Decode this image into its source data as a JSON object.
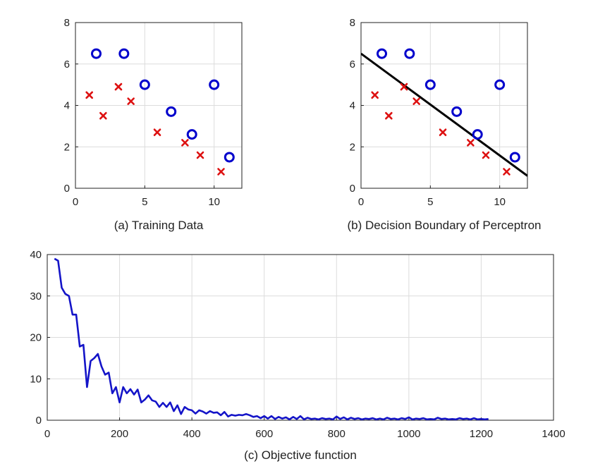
{
  "chart_data": [
    {
      "type": "scatter",
      "caption": "(a) Training Data",
      "xlim": [
        0,
        12
      ],
      "ylim": [
        0,
        8
      ],
      "xticks": [
        0,
        5,
        10
      ],
      "yticks": [
        0,
        2,
        4,
        6,
        8
      ],
      "grid": true,
      "series": [
        {
          "marker": "circle",
          "color": "#0000cc",
          "points": [
            [
              1.5,
              6.5
            ],
            [
              3.5,
              6.5
            ],
            [
              5.0,
              5.0
            ],
            [
              6.9,
              3.7
            ],
            [
              8.4,
              2.6
            ],
            [
              10.0,
              5.0
            ],
            [
              11.1,
              1.5
            ]
          ]
        },
        {
          "marker": "x",
          "color": "#dd1111",
          "points": [
            [
              1.0,
              4.5
            ],
            [
              2.0,
              3.5
            ],
            [
              3.1,
              4.9
            ],
            [
              4.0,
              4.2
            ],
            [
              5.9,
              2.7
            ],
            [
              7.9,
              2.2
            ],
            [
              9.0,
              1.6
            ],
            [
              10.5,
              0.8
            ]
          ]
        }
      ]
    },
    {
      "type": "scatter",
      "caption": "(b) Decision Boundary of Perceptron",
      "xlim": [
        0,
        12
      ],
      "ylim": [
        0,
        8
      ],
      "xticks": [
        0,
        5,
        10
      ],
      "yticks": [
        0,
        2,
        4,
        6,
        8
      ],
      "grid": true,
      "series": [
        {
          "marker": "circle",
          "color": "#0000cc",
          "points": [
            [
              1.5,
              6.5
            ],
            [
              3.5,
              6.5
            ],
            [
              5.0,
              5.0
            ],
            [
              6.9,
              3.7
            ],
            [
              8.4,
              2.6
            ],
            [
              10.0,
              5.0
            ],
            [
              11.1,
              1.5
            ]
          ]
        },
        {
          "marker": "x",
          "color": "#dd1111",
          "points": [
            [
              1.0,
              4.5
            ],
            [
              2.0,
              3.5
            ],
            [
              3.1,
              4.9
            ],
            [
              4.0,
              4.2
            ],
            [
              5.9,
              2.7
            ],
            [
              7.9,
              2.2
            ],
            [
              9.0,
              1.6
            ],
            [
              10.5,
              0.8
            ]
          ]
        }
      ],
      "boundary": {
        "color": "#000000",
        "points": [
          [
            0,
            6.5
          ],
          [
            12,
            0.6
          ]
        ]
      }
    },
    {
      "type": "line",
      "caption": "(c) Objective function",
      "xlim": [
        0,
        1400
      ],
      "ylim": [
        0,
        40
      ],
      "xticks": [
        0,
        200,
        400,
        600,
        800,
        1000,
        1200,
        1400
      ],
      "yticks": [
        0,
        10,
        20,
        30,
        40
      ],
      "grid": true,
      "series": [
        {
          "color": "#1414c8",
          "x": [
            20,
            30,
            40,
            50,
            60,
            70,
            80,
            90,
            100,
            110,
            120,
            130,
            140,
            150,
            160,
            170,
            180,
            190,
            200,
            210,
            220,
            230,
            240,
            250,
            260,
            270,
            280,
            290,
            300,
            310,
            320,
            330,
            340,
            350,
            360,
            370,
            380,
            390,
            400,
            410,
            420,
            430,
            440,
            450,
            460,
            470,
            480,
            490,
            500,
            510,
            520,
            530,
            540,
            550,
            560,
            570,
            580,
            590,
            600,
            610,
            620,
            630,
            640,
            650,
            660,
            670,
            680,
            690,
            700,
            710,
            720,
            730,
            740,
            750,
            760,
            770,
            780,
            790,
            800,
            810,
            820,
            830,
            840,
            850,
            860,
            870,
            880,
            890,
            900,
            910,
            920,
            930,
            940,
            950,
            960,
            970,
            980,
            990,
            1000,
            1010,
            1020,
            1030,
            1040,
            1050,
            1060,
            1070,
            1080,
            1090,
            1100,
            1110,
            1120,
            1130,
            1140,
            1150,
            1160,
            1170,
            1180,
            1190,
            1200,
            1210,
            1220
          ],
          "y": [
            39,
            38.5,
            32,
            30.5,
            30,
            25.5,
            25.5,
            17.8,
            18.2,
            8,
            14.3,
            15,
            16,
            13,
            11,
            11.5,
            6.5,
            8,
            4.3,
            8,
            6.5,
            7.5,
            6.2,
            7.4,
            4.3,
            5,
            6,
            4.8,
            4.5,
            3.2,
            4.2,
            3.2,
            4.3,
            2.2,
            3.6,
            1.5,
            3.2,
            2.6,
            2.4,
            1.6,
            2.4,
            2.1,
            1.6,
            2.2,
            1.8,
            1.9,
            1.2,
            2.0,
            0.9,
            1.3,
            1.1,
            1.3,
            1.2,
            1.5,
            1.2,
            0.8,
            1.0,
            0.5,
            1.0,
            0.4,
            1.0,
            0.3,
            0.8,
            0.4,
            0.7,
            0.2,
            0.8,
            0.3,
            1.0,
            0.2,
            0.6,
            0.3,
            0.4,
            0.2,
            0.5,
            0.3,
            0.4,
            0.2,
            0.9,
            0.3,
            0.7,
            0.2,
            0.6,
            0.3,
            0.5,
            0.2,
            0.4,
            0.3,
            0.5,
            0.2,
            0.4,
            0.2,
            0.6,
            0.3,
            0.4,
            0.2,
            0.5,
            0.3,
            0.7,
            0.2,
            0.4,
            0.3,
            0.5,
            0.2,
            0.3,
            0.2,
            0.6,
            0.3,
            0.4,
            0.2,
            0.3,
            0.2,
            0.5,
            0.3,
            0.4,
            0.2,
            0.5,
            0.2,
            0.3,
            0.2,
            0.3
          ]
        }
      ]
    }
  ]
}
